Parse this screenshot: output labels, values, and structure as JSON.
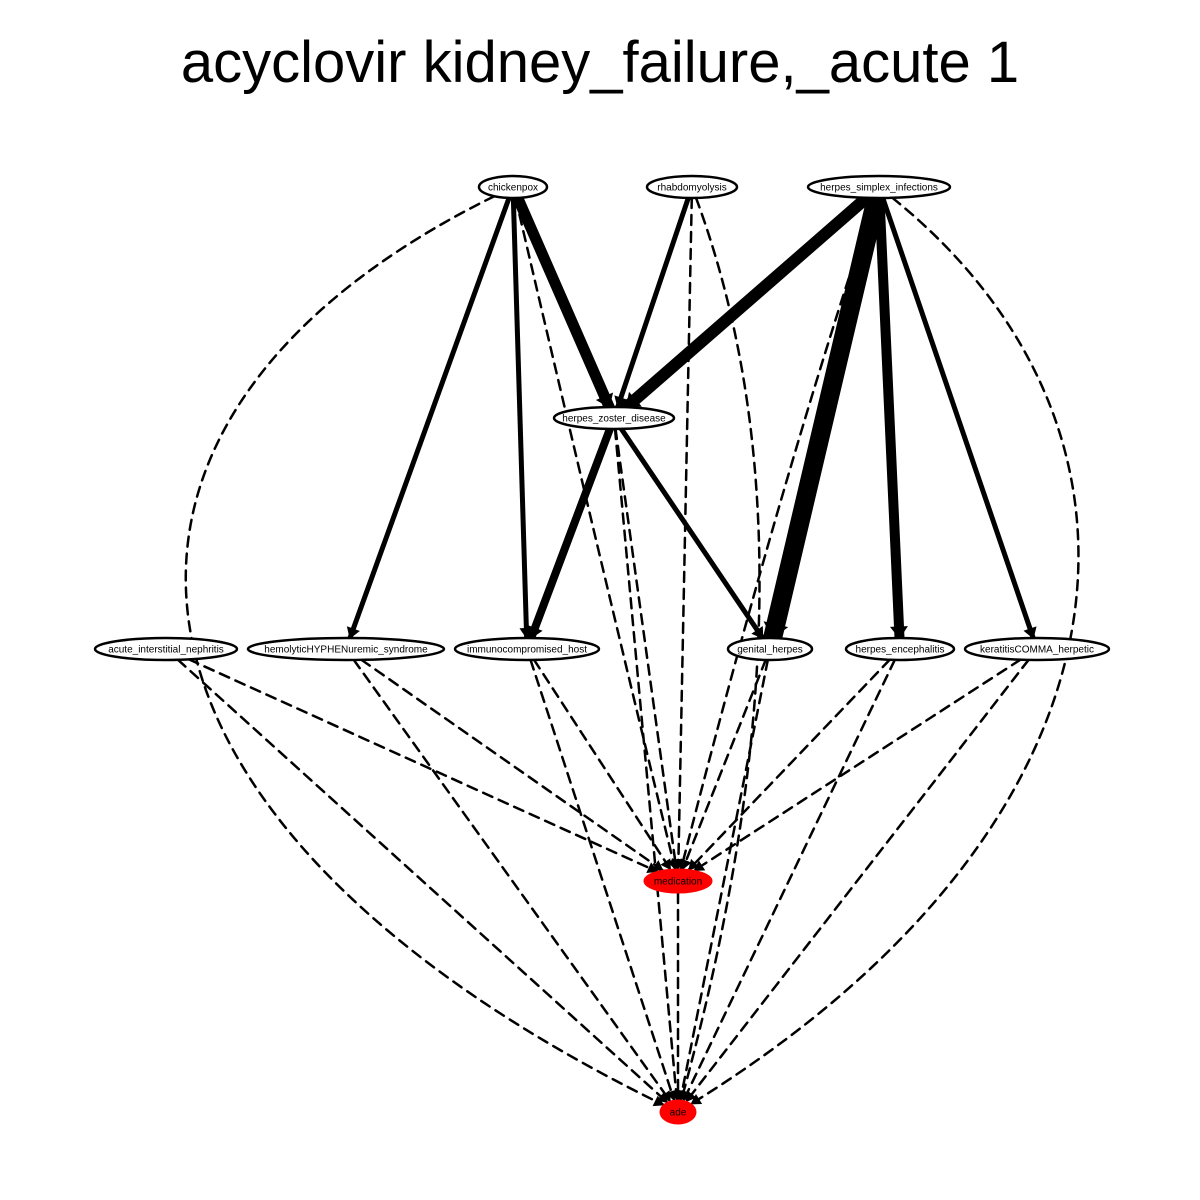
{
  "title": "acyclovir kidney_failure,_acute 1",
  "colors": {
    "node_fill": "#ffffff",
    "node_stroke": "#000000",
    "highlight_fill": "#ff0000",
    "edge": "#000000"
  },
  "nodes": [
    {
      "id": "chickenpox",
      "label": "chickenpox",
      "highlight": false
    },
    {
      "id": "rhabdomyolysis",
      "label": "rhabdomyolysis",
      "highlight": false
    },
    {
      "id": "herpes_simplex_infections",
      "label": "herpes_simplex_infections",
      "highlight": false
    },
    {
      "id": "herpes_zoster_disease",
      "label": "herpes_zoster_disease",
      "highlight": false
    },
    {
      "id": "acute_interstitial_nephritis",
      "label": "acute_interstitial_nephritis",
      "highlight": false
    },
    {
      "id": "hemolyticHYPHENuremic_syndrome",
      "label": "hemolyticHYPHENuremic_syndrome",
      "highlight": false
    },
    {
      "id": "immunocompromised_host",
      "label": "immunocompromised_host",
      "highlight": false
    },
    {
      "id": "genital_herpes",
      "label": "genital_herpes",
      "highlight": false
    },
    {
      "id": "herpes_encephalitis",
      "label": "herpes_encephalitis",
      "highlight": false
    },
    {
      "id": "keratitisCOMMA_herpetic",
      "label": "keratitisCOMMA_herpetic",
      "highlight": false
    },
    {
      "id": "medication",
      "label": "medication",
      "highlight": true
    },
    {
      "id": "ade",
      "label": "ade",
      "highlight": true
    }
  ],
  "edges": [
    {
      "from": "chickenpox",
      "to": "herpes_zoster_disease",
      "style": "solid",
      "weight": 11
    },
    {
      "from": "chickenpox",
      "to": "hemolyticHYPHENuremic_syndrome",
      "style": "solid",
      "weight": 5
    },
    {
      "from": "chickenpox",
      "to": "immunocompromised_host",
      "style": "solid",
      "weight": 5
    },
    {
      "from": "chickenpox",
      "to": "medication",
      "style": "dashed",
      "weight": 2.5
    },
    {
      "from": "chickenpox",
      "to": "ade",
      "style": "dashed",
      "weight": 2.5
    },
    {
      "from": "rhabdomyolysis",
      "to": "herpes_zoster_disease",
      "style": "solid",
      "weight": 5
    },
    {
      "from": "rhabdomyolysis",
      "to": "medication",
      "style": "dashed",
      "weight": 2.5
    },
    {
      "from": "rhabdomyolysis",
      "to": "ade",
      "style": "dashed",
      "weight": 2.5
    },
    {
      "from": "herpes_simplex_infections",
      "to": "herpes_zoster_disease",
      "style": "solid",
      "weight": 12
    },
    {
      "from": "herpes_simplex_infections",
      "to": "genital_herpes",
      "style": "solid",
      "weight": 19
    },
    {
      "from": "herpes_simplex_infections",
      "to": "herpes_encephalitis",
      "style": "solid",
      "weight": 10
    },
    {
      "from": "herpes_simplex_infections",
      "to": "keratitisCOMMA_herpetic",
      "style": "solid",
      "weight": 5
    },
    {
      "from": "herpes_simplex_infections",
      "to": "medication",
      "style": "dashed",
      "weight": 2.5
    },
    {
      "from": "herpes_simplex_infections",
      "to": "ade",
      "style": "dashed",
      "weight": 2.5
    },
    {
      "from": "herpes_zoster_disease",
      "to": "immunocompromised_host",
      "style": "solid",
      "weight": 8
    },
    {
      "from": "herpes_zoster_disease",
      "to": "genital_herpes",
      "style": "solid",
      "weight": 5
    },
    {
      "from": "herpes_zoster_disease",
      "to": "medication",
      "style": "dashed",
      "weight": 2.5
    },
    {
      "from": "herpes_zoster_disease",
      "to": "ade",
      "style": "dashed",
      "weight": 2.5
    },
    {
      "from": "acute_interstitial_nephritis",
      "to": "medication",
      "style": "dashed",
      "weight": 2.5
    },
    {
      "from": "acute_interstitial_nephritis",
      "to": "ade",
      "style": "dashed",
      "weight": 2.5
    },
    {
      "from": "hemolyticHYPHENuremic_syndrome",
      "to": "medication",
      "style": "dashed",
      "weight": 2.5
    },
    {
      "from": "hemolyticHYPHENuremic_syndrome",
      "to": "ade",
      "style": "dashed",
      "weight": 2.5
    },
    {
      "from": "immunocompromised_host",
      "to": "medication",
      "style": "dashed",
      "weight": 2.5
    },
    {
      "from": "immunocompromised_host",
      "to": "ade",
      "style": "dashed",
      "weight": 2.5
    },
    {
      "from": "genital_herpes",
      "to": "medication",
      "style": "dashed",
      "weight": 2.5
    },
    {
      "from": "genital_herpes",
      "to": "ade",
      "style": "dashed",
      "weight": 2.5
    },
    {
      "from": "herpes_encephalitis",
      "to": "medication",
      "style": "dashed",
      "weight": 2.5
    },
    {
      "from": "herpes_encephalitis",
      "to": "ade",
      "style": "dashed",
      "weight": 2.5
    },
    {
      "from": "keratitisCOMMA_herpetic",
      "to": "medication",
      "style": "dashed",
      "weight": 2.5
    },
    {
      "from": "keratitisCOMMA_herpetic",
      "to": "ade",
      "style": "dashed",
      "weight": 2.5
    },
    {
      "from": "medication",
      "to": "ade",
      "style": "dashed",
      "weight": 2.5
    }
  ]
}
